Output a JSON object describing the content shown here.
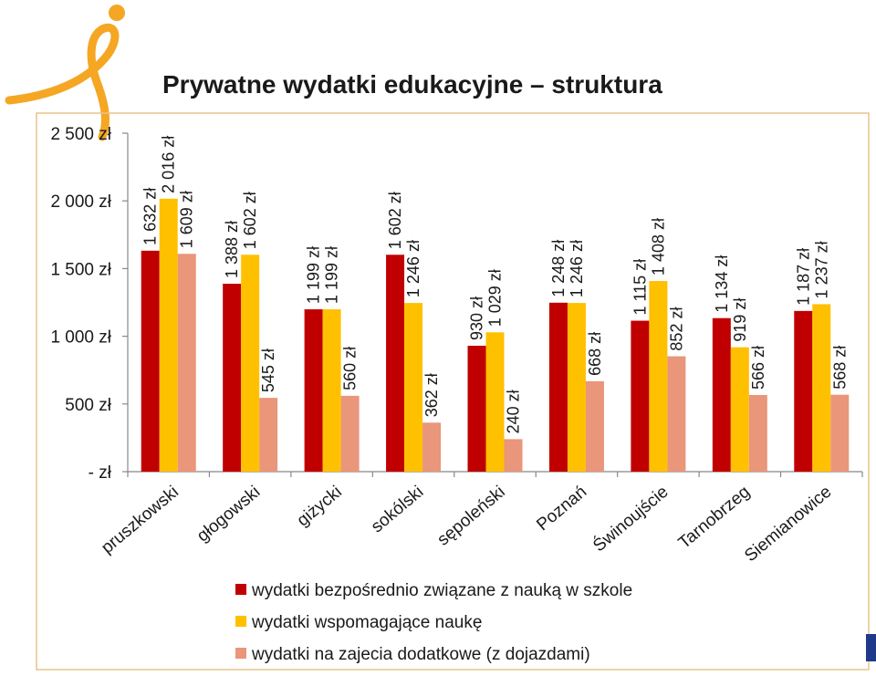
{
  "chart_data": {
    "type": "bar",
    "title": "Prywatne wydatki edukacyjne – struktura",
    "xlabel": "",
    "ylabel": "",
    "ylim": [
      0,
      2500
    ],
    "y_ticks": [
      {
        "value": 0,
        "label": "-   zł"
      },
      {
        "value": 500,
        "label": "500 zł"
      },
      {
        "value": 1000,
        "label": "1 000 zł"
      },
      {
        "value": 1500,
        "label": "1 500 zł"
      },
      {
        "value": 2000,
        "label": "2 000 zł"
      },
      {
        "value": 2500,
        "label": "2 500 zł"
      }
    ],
    "grid": false,
    "legend_position": "bottom",
    "categories": [
      "pruszkowski",
      "głogowski",
      "giżycki",
      "sokólski",
      "sępoleński",
      "Poznań",
      "Świnoujście",
      "Tarnobrzeg",
      "Siemianowice"
    ],
    "series": [
      {
        "name": "wydatki bezpośrednio związane z nauką w szkole",
        "color": "#c00000",
        "values": [
          1632,
          1388,
          1199,
          1602,
          930,
          1248,
          1115,
          1134,
          1187
        ],
        "labels": [
          "1 632 zł",
          "1 388 zł",
          "1 199 zł",
          "1 602 zł",
          "930 zł",
          "1 248 zł",
          "1 115 zł",
          "1 134 zł",
          "1 187 zł"
        ]
      },
      {
        "name": "wydatki wspomagające naukę",
        "color": "#ffc000",
        "values": [
          2016,
          1602,
          1199,
          1246,
          1029,
          1246,
          1408,
          919,
          1237
        ],
        "labels": [
          "2 016 zł",
          "1 602 zł",
          "1 199 zł",
          "1 246 zł",
          "1 029 zł",
          "1 246 zł",
          "1 408 zł",
          "919 zł",
          "1 237 zł"
        ]
      },
      {
        "name": "wydatki na zajecia dodatkowe (z dojazdami)",
        "color": "#e9967a",
        "values": [
          1609,
          545,
          560,
          362,
          240,
          668,
          852,
          566,
          568
        ],
        "labels": [
          "1 609 zł",
          "545 zł",
          "560 zł",
          "362 zł",
          "240 zł",
          "668 zł",
          "852 zł",
          "566 zł",
          "568 zł"
        ]
      }
    ]
  },
  "decor": {
    "logo_color": "#f5a623",
    "frame_color": "#e8c48a",
    "axis_color": "#888888",
    "corner_color": "#1f3a8a"
  }
}
